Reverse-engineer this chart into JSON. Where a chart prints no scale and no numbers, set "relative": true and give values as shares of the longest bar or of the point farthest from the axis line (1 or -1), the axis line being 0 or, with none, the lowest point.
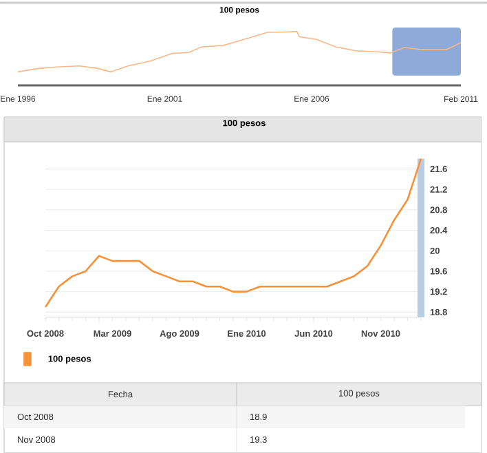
{
  "chart_data": [
    {
      "type": "line",
      "title": "100 pesos",
      "relative": true,
      "color": "#f5b98a",
      "x": [
        "1996-01",
        "1996-09",
        "1997-05",
        "1998-02",
        "1998-09",
        "1999-03",
        "1999-10",
        "2000-07",
        "2001-04",
        "2001-11",
        "2002-04",
        "2003-01",
        "2003-08",
        "2004-07",
        "2005-04",
        "2005-07",
        "2005-08",
        "2006-03",
        "2006-11",
        "2007-07",
        "2008-04",
        "2008-09",
        "2009-03",
        "2009-10",
        "2010-08",
        "2011-02"
      ],
      "values": [
        0.25,
        0.31,
        0.34,
        0.36,
        0.32,
        0.25,
        0.36,
        0.45,
        0.59,
        0.61,
        0.71,
        0.74,
        0.83,
        0.98,
        0.99,
        1.0,
        0.9,
        0.85,
        0.71,
        0.64,
        0.62,
        0.6,
        0.7,
        0.66,
        0.66,
        0.79
      ],
      "xlim": [
        "1996-01",
        "2011-02"
      ],
      "xticks": [
        {
          "value": "1996-01",
          "label": "Ene 1996"
        },
        {
          "value": "2001-01",
          "label": "Ene 2001"
        },
        {
          "value": "2006-01",
          "label": "Ene 2006"
        },
        {
          "value": "2011-02",
          "label": "Feb 2011"
        }
      ],
      "bands": [
        {
          "axis": "x",
          "from": "2008-10",
          "to": "2011-02",
          "color": "#8eaad8"
        }
      ]
    },
    {
      "type": "line",
      "title": "100 pesos",
      "categories": [
        "Oct 2008",
        null,
        null,
        null,
        null,
        "Mar 2009",
        null,
        null,
        null,
        null,
        "Ago 2009",
        null,
        null,
        null,
        null,
        "Ene 2010",
        null,
        null,
        null,
        null,
        "Jun 2010",
        null,
        null,
        null,
        null,
        "Nov 2010",
        null,
        null,
        null
      ],
      "series": [
        {
          "name": "100 pesos",
          "color": "#f7923a",
          "values": [
            18.9,
            19.3,
            19.5,
            19.6,
            19.9,
            19.8,
            19.8,
            19.8,
            19.6,
            19.5,
            19.4,
            19.4,
            19.3,
            19.3,
            19.2,
            19.2,
            19.3,
            19.3,
            19.3,
            19.3,
            19.3,
            19.3,
            19.4,
            19.5,
            19.7,
            20.1,
            20.6,
            21.0,
            21.8
          ]
        }
      ],
      "ylim": [
        18.7,
        21.8
      ],
      "yticks": [
        18.8,
        19.2,
        19.6,
        20,
        20.4,
        20.8,
        21.2,
        21.6
      ],
      "grid": "y",
      "legend": "bottom",
      "marker": "none",
      "annotations": [
        "Fecha",
        "100 pesos",
        "Oct 2008",
        "18.9",
        "Nov 2008",
        "19.3"
      ]
    }
  ]
}
